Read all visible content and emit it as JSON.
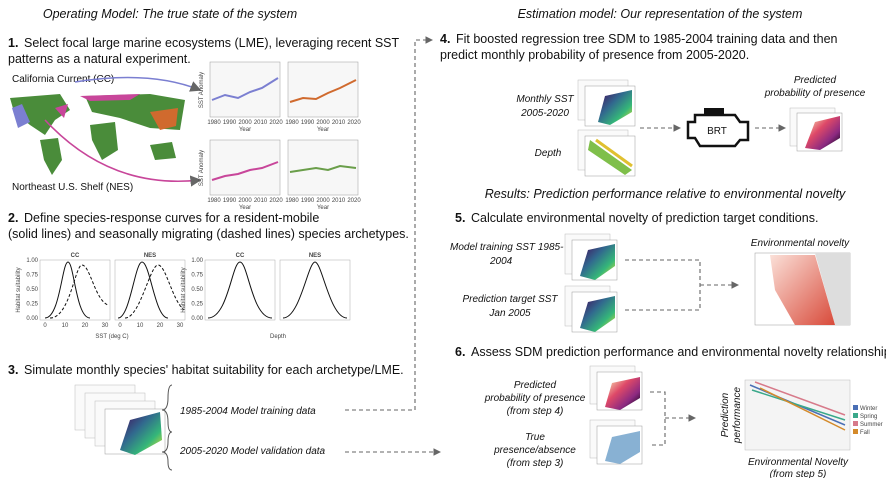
{
  "left": {
    "title": "Operating Model: The true state of the system",
    "step1": {
      "number": "1.",
      "lines": [
        "Select focal large marine ecosystems (LME), leveraging recent SST",
        "patterns as a natural experiment."
      ],
      "cc_label": "California Current (CC)",
      "nes_label": "Northeast U.S. Shelf (NES)",
      "y_label": "SST Anomaly",
      "x_label": "Year",
      "x_ticks": [
        "1980",
        "1990",
        "2000",
        "2010",
        "2020"
      ]
    },
    "step2": {
      "number": "2.",
      "lines": [
        "Define species-response curves for a resident-mobile",
        "(solid lines) and seasonally migrating (dashed lines) species archetypes."
      ],
      "panel_titles": [
        "CC",
        "NES",
        "CC",
        "NES"
      ],
      "y_label": "Habitat suitability",
      "x_label_sst": "SST (deg C)",
      "x_label_depth": "Depth",
      "y_ticks": [
        "0.00",
        "0.25",
        "0.50",
        "0.75",
        "1.00"
      ],
      "sst_ticks": [
        "0",
        "10",
        "20",
        "30"
      ]
    },
    "step3": {
      "number": "3.",
      "lines": [
        "Simulate monthly species' habitat suitability for each archetype/LME."
      ],
      "training": "1985-2004 Model training data",
      "validation": "2005-2020 Model validation data"
    }
  },
  "right": {
    "title": "Estimation model: Our representation of the system",
    "step4": {
      "number": "4.",
      "lines": [
        "Fit boosted regression tree SDM to 1985-2004 training data and then",
        "predict monthly probability of presence from 2005-2020."
      ],
      "sst_label": [
        "Monthly SST",
        "2005-2020"
      ],
      "depth_label": "Depth",
      "model": "BRT",
      "output": [
        "Predicted",
        "probability of presence"
      ]
    },
    "results_title": "Results: Prediction performance relative to environmental novelty",
    "step5": {
      "number": "5.",
      "lines": [
        "Calculate environmental novelty of prediction target conditions."
      ],
      "training_label": [
        "Model training SST 1985-",
        "2004"
      ],
      "target_label": [
        "Prediction target SST",
        "Jan 2005"
      ],
      "output": "Environmental novelty"
    },
    "step6": {
      "number": "6.",
      "lines": [
        "Assess SDM prediction performance and environmental novelty relationship."
      ],
      "predicted_label": [
        "Predicted",
        "probability of presence",
        "(from step 4)"
      ],
      "true_label": [
        "True",
        "presence/absence",
        "(from step 3)"
      ],
      "y_label": [
        "Prediction",
        "performance"
      ],
      "x_label": [
        "Environmental Novelty",
        "(from step 5)"
      ],
      "legend": [
        "Winter",
        "Spring",
        "Summer",
        "Fall"
      ]
    }
  }
}
